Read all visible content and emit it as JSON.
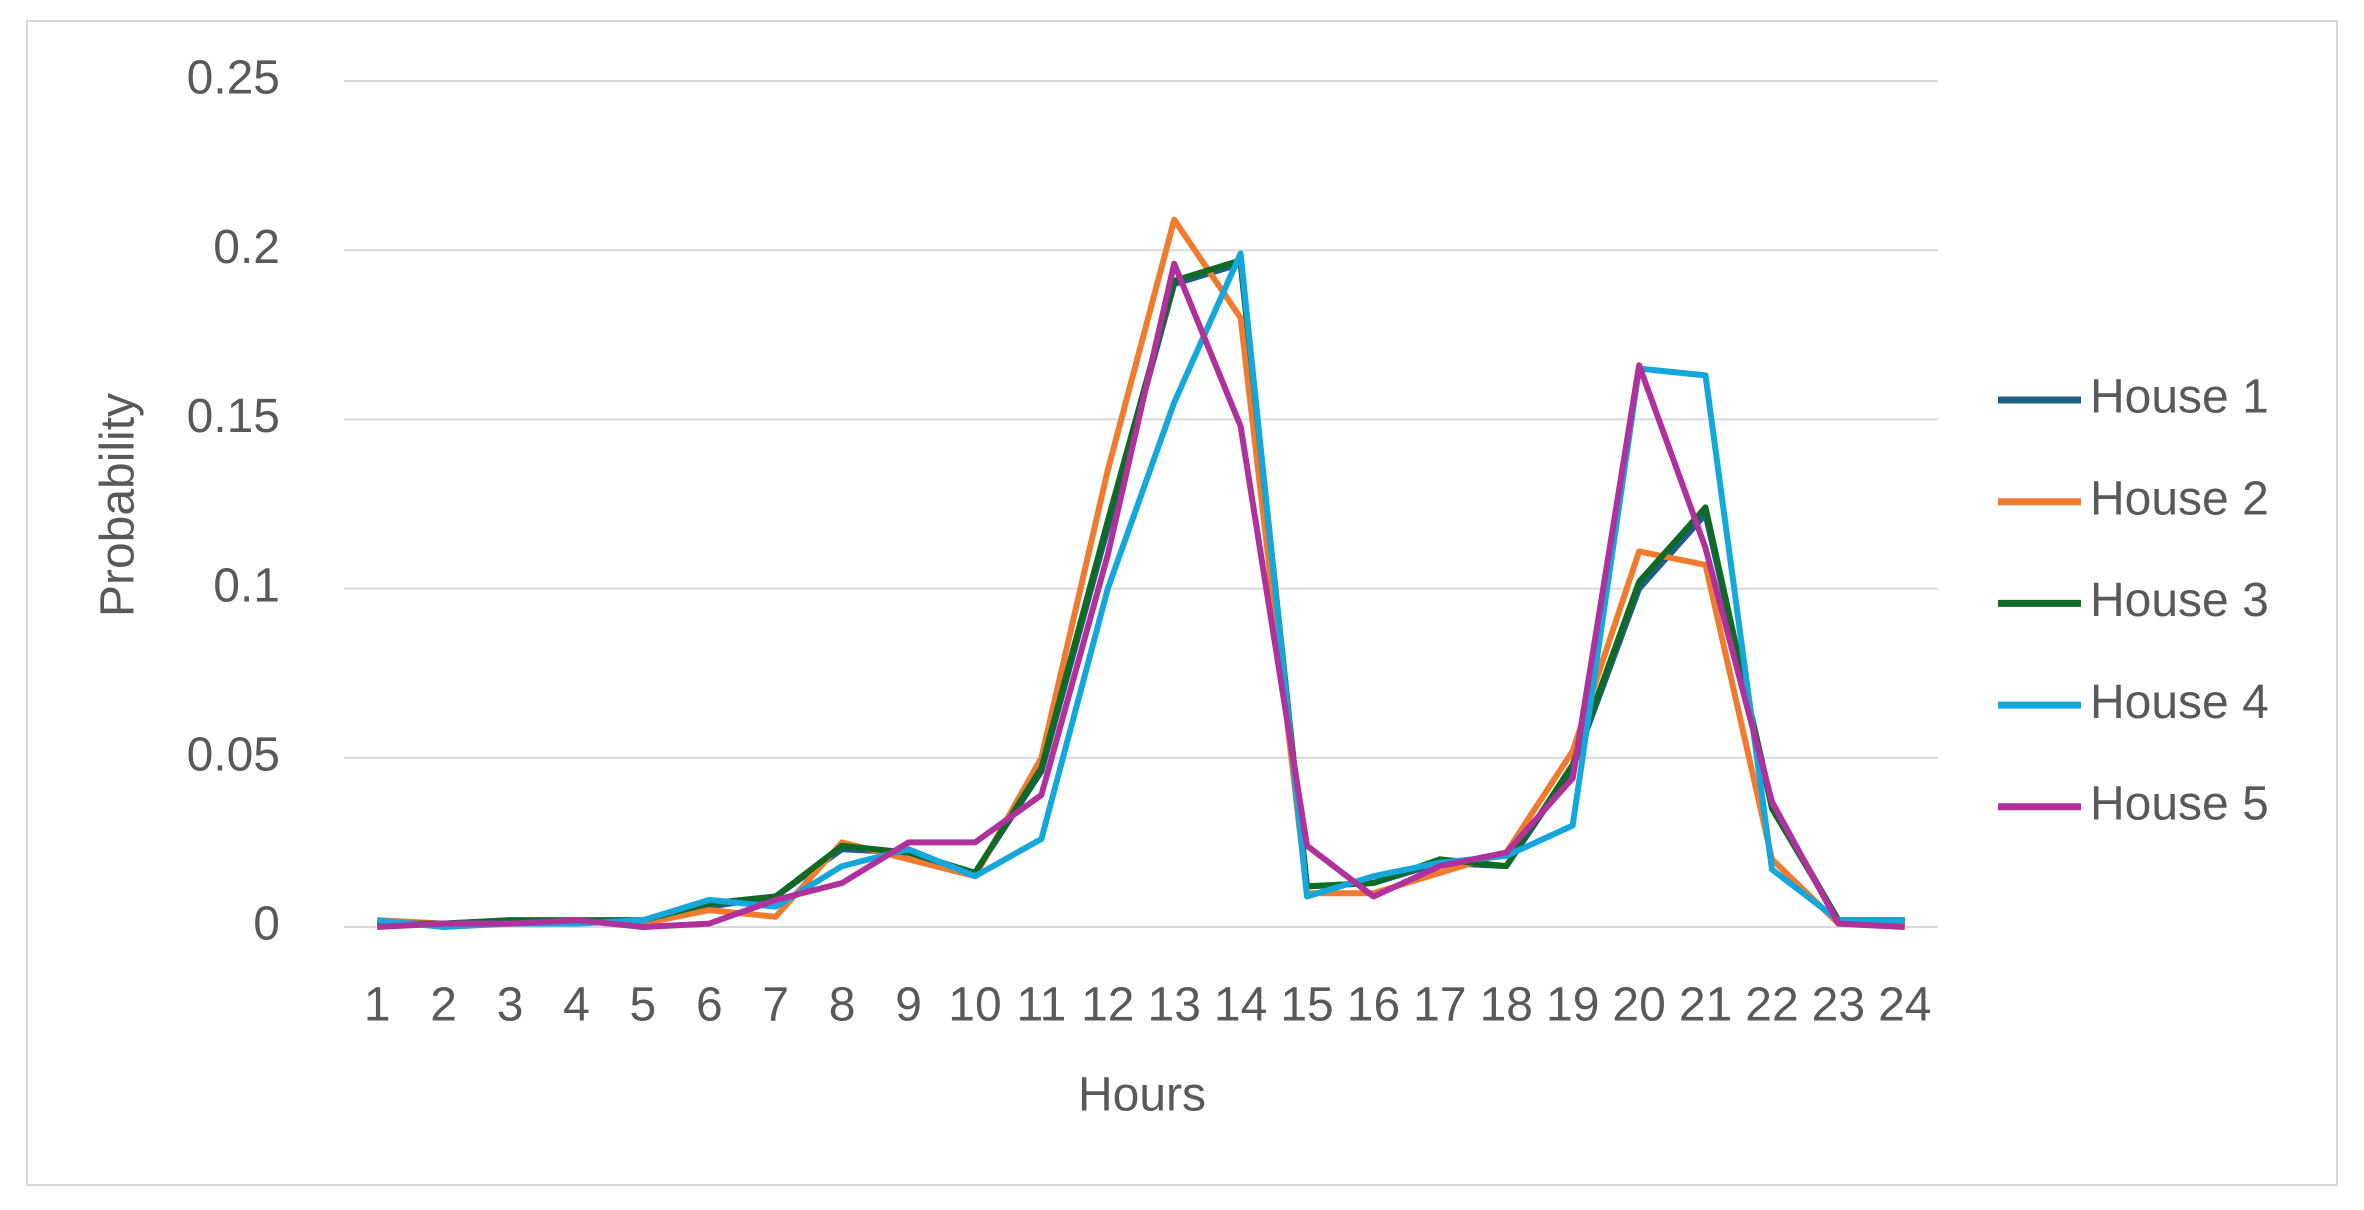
{
  "chart_data": {
    "type": "line",
    "x_label": "Hours",
    "y_label": "Probability",
    "categories": [
      "1",
      "2",
      "3",
      "4",
      "5",
      "6",
      "7",
      "8",
      "9",
      "10",
      "11",
      "12",
      "13",
      "14",
      "15",
      "16",
      "17",
      "18",
      "19",
      "20",
      "21",
      "22",
      "23",
      "24"
    ],
    "ylim": [
      0,
      0.25
    ],
    "yticks": [
      0,
      0.05,
      0.1,
      0.15,
      0.2,
      0.25
    ],
    "grid": true,
    "legend": "right",
    "series": [
      {
        "name": "House 1",
        "color": "#1f5c8a",
        "values": [
          0.001,
          0.001,
          0.002,
          0.002,
          0.002,
          0.006,
          0.009,
          0.023,
          0.022,
          0.016,
          0.046,
          0.118,
          0.19,
          0.196,
          0.012,
          0.013,
          0.019,
          0.018,
          0.047,
          0.1,
          0.122,
          0.036,
          0.002,
          0.002
        ]
      },
      {
        "name": "House 2",
        "color": "#f07a2e",
        "values": [
          0.002,
          0.001,
          0.001,
          0.002,
          0.001,
          0.005,
          0.003,
          0.025,
          0.02,
          0.015,
          0.05,
          0.135,
          0.209,
          0.18,
          0.01,
          0.01,
          0.016,
          0.022,
          0.052,
          0.111,
          0.107,
          0.02,
          0.001,
          0.001
        ]
      },
      {
        "name": "House 3",
        "color": "#0f6b24",
        "values": [
          0.001,
          0.001,
          0.002,
          0.002,
          0.002,
          0.007,
          0.009,
          0.024,
          0.022,
          0.016,
          0.047,
          0.12,
          0.191,
          0.197,
          0.012,
          0.013,
          0.02,
          0.018,
          0.048,
          0.102,
          0.124,
          0.035,
          0.002,
          0.002
        ]
      },
      {
        "name": "House 4",
        "color": "#14a7dc",
        "values": [
          0.002,
          0,
          0.001,
          0.001,
          0.002,
          0.008,
          0.006,
          0.018,
          0.023,
          0.015,
          0.026,
          0.1,
          0.155,
          0.199,
          0.009,
          0.015,
          0.019,
          0.021,
          0.03,
          0.165,
          0.163,
          0.017,
          0.002,
          0.002
        ]
      },
      {
        "name": "House 5",
        "color": "#b0309c",
        "values": [
          0,
          0.001,
          0.001,
          0.002,
          0,
          0.001,
          0.008,
          0.013,
          0.025,
          0.025,
          0.039,
          0.11,
          0.196,
          0.148,
          0.024,
          0.009,
          0.018,
          0.022,
          0.044,
          0.166,
          0.112,
          0.037,
          0.001,
          0
        ]
      }
    ]
  }
}
